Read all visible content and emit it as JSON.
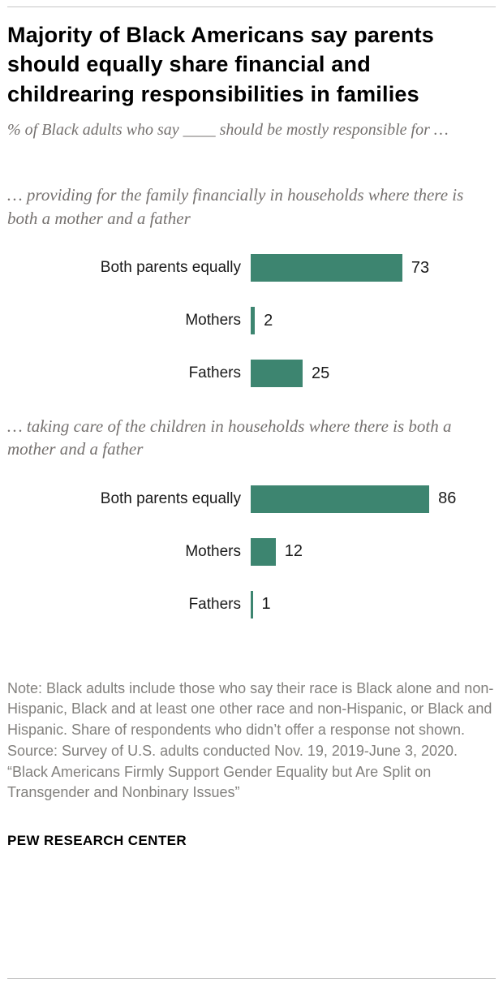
{
  "header": {
    "title": "Majority of Black Americans say parents should equally share financial and childrearing responsibilities in families",
    "subtitle": "% of Black adults who say ____ should be mostly responsible for …"
  },
  "chart_data": [
    {
      "type": "bar",
      "orientation": "horizontal",
      "title": "… providing for the family financially in households where there is both a mother and a father",
      "categories": [
        "Both parents equally",
        "Mothers",
        "Fathers"
      ],
      "values": [
        73,
        2,
        25
      ],
      "xlim": [
        0,
        100
      ],
      "bar_color": "#3d8570",
      "data_labels": true,
      "grid": false,
      "legend": "none"
    },
    {
      "type": "bar",
      "orientation": "horizontal",
      "title": "… taking care of the children in households where there is both a mother and a father",
      "categories": [
        "Both parents equally",
        "Mothers",
        "Fathers"
      ],
      "values": [
        86,
        12,
        1
      ],
      "xlim": [
        0,
        100
      ],
      "bar_color": "#3d8570",
      "data_labels": true,
      "grid": false,
      "legend": "none"
    }
  ],
  "footer": {
    "note": "Note: Black adults include those who say their race is Black alone and non-Hispanic, Black and at least one other race and non-Hispanic, or Black and Hispanic. Share of respondents who didn’t offer a response not shown.",
    "source": "Source: Survey of U.S. adults conducted Nov. 19, 2019-June 3, 2020.",
    "report": "“Black Americans Firmly Support Gender Equality but Are Split on Transgender and Nonbinary Issues”",
    "brand": "PEW RESEARCH CENTER"
  },
  "colors": {
    "bar": "#3d8570",
    "muted_text": "#75716f",
    "note_text": "#82807d",
    "rule": "#c6c6c6"
  }
}
